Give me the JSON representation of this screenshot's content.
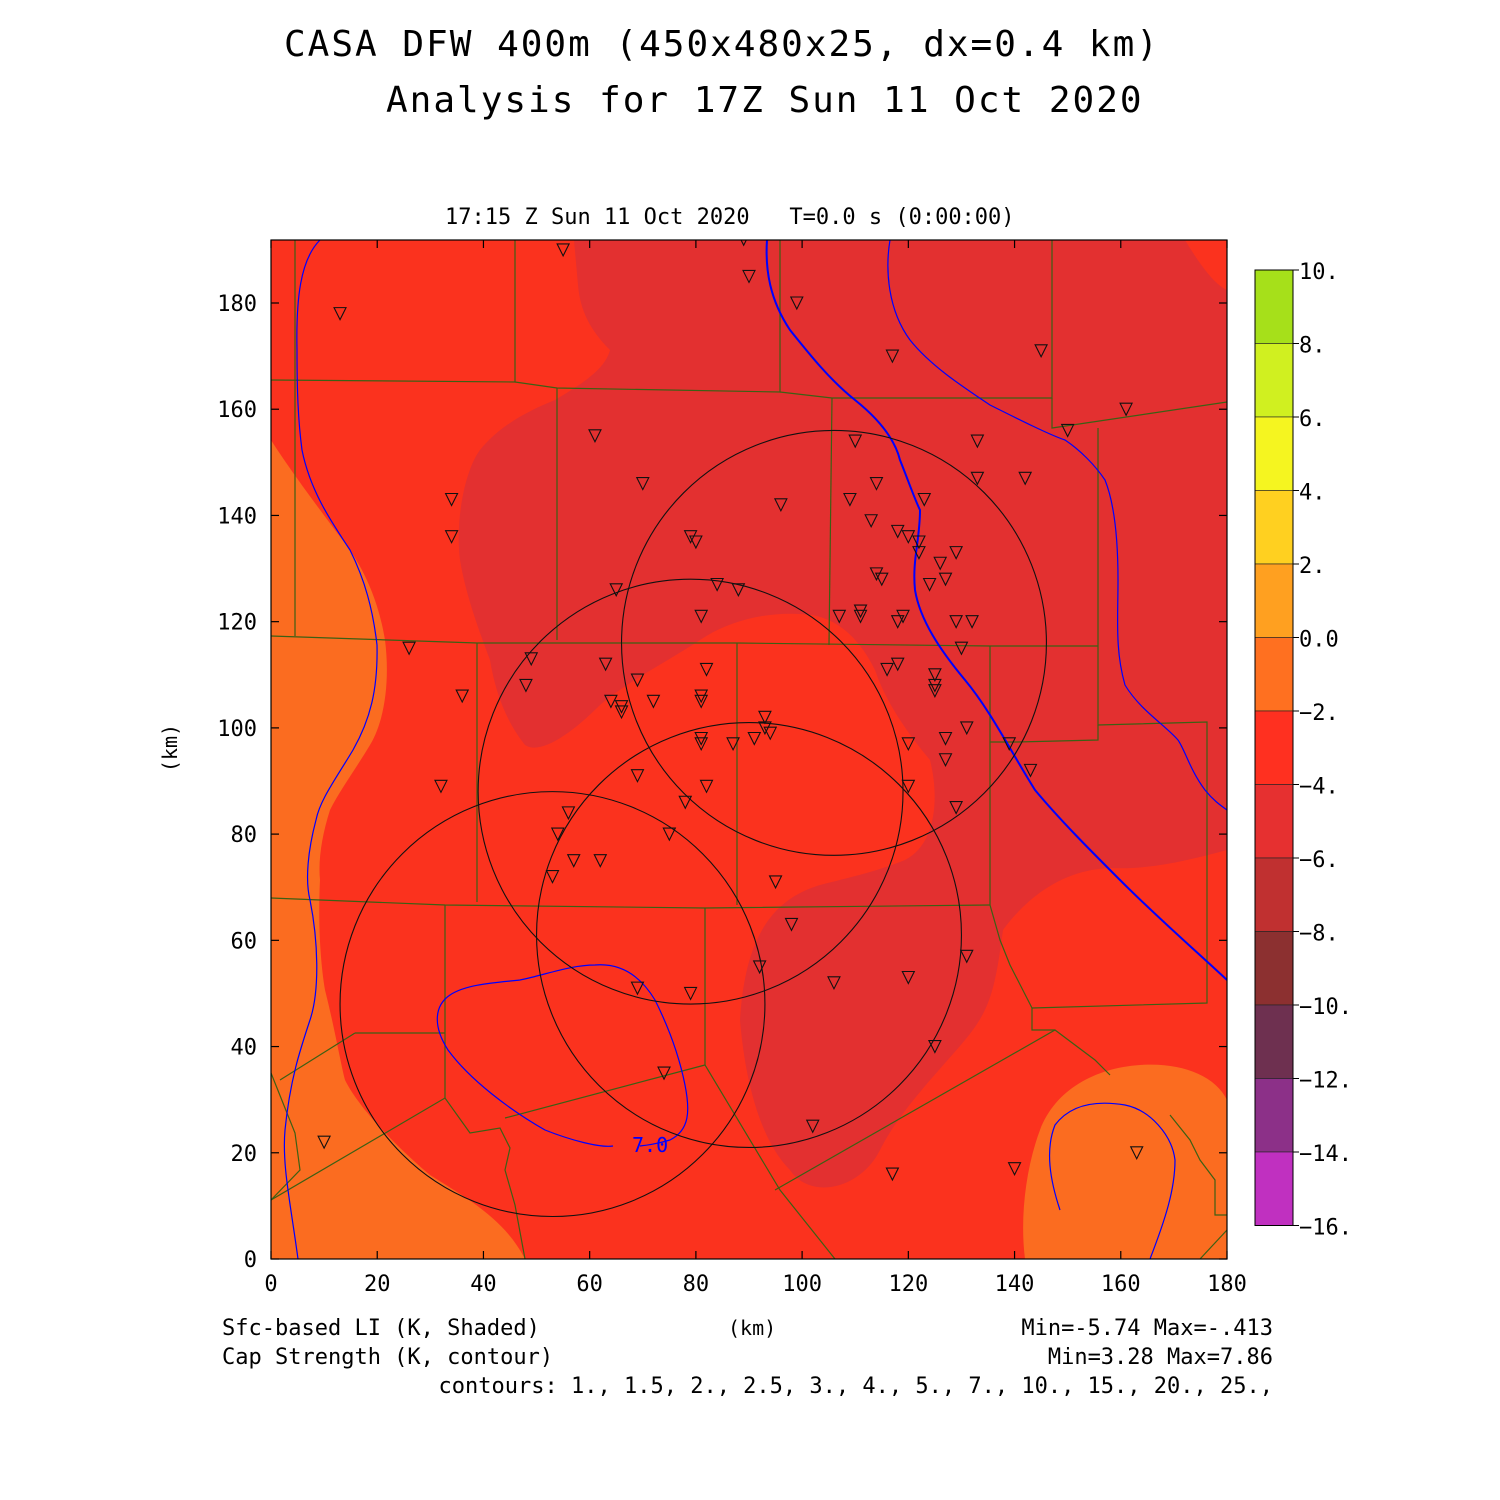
{
  "title": {
    "line1": "CASA DFW 400m (450x480x25, dx=0.4 km)",
    "line2": "Analysis for 17Z Sun 11 Oct 2020"
  },
  "plot_subtitle": "17:15 Z Sun 11 Oct 2020   T=0.0 s (0:00:00)",
  "axes": {
    "x_label": "(km)",
    "y_label": "(km)",
    "x_ticks": [
      "0",
      "20",
      "40",
      "60",
      "80",
      "100",
      "120",
      "140",
      "160",
      "180"
    ],
    "y_ticks": [
      "0",
      "20",
      "40",
      "60",
      "80",
      "100",
      "120",
      "140",
      "160",
      "180"
    ],
    "x_range": [
      0,
      180
    ],
    "y_range": [
      0,
      192
    ]
  },
  "colorbar": {
    "labels": [
      "10.",
      "8.",
      "6.",
      "4.",
      "2.",
      "0.0",
      "−2.",
      "−4.",
      "−6.",
      "−8.",
      "−10.",
      "−12.",
      "−14.",
      "−16."
    ],
    "colors": [
      "#a6e01a",
      "#d0f020",
      "#f5f520",
      "#ffd020",
      "#ffa020",
      "#ff7020",
      "#ff3020",
      "#e63030",
      "#c03030",
      "#8c3030",
      "#6e3050",
      "#8c3088",
      "#c030c0",
      "#e040e0"
    ]
  },
  "colors": {
    "li_minus2_0": "#fb6c20",
    "li_minus4_minus2": "#fb321e",
    "li_minus6_minus4": "#e33030",
    "cap_contour": "#0000ff",
    "county_lines": "#3c6014"
  },
  "contour_labels": [
    "7.0"
  ],
  "footer": {
    "field1": "Sfc-based LI (K, Shaded)",
    "field2": "Cap Strength (K, contour)",
    "stats1": "Min=-5.74 Max=-.413",
    "stats2": "Min=3.28 Max=7.86",
    "contours": "contours: 1., 1.5, 2., 2.5, 3., 4., 5., 7., 10., 15., 20., 25.,"
  },
  "radar_ranges": [
    {
      "x": 106,
      "y": 116,
      "r": 40
    },
    {
      "x": 79,
      "y": 88,
      "r": 40
    },
    {
      "x": 90,
      "y": 61,
      "r": 40
    },
    {
      "x": 53,
      "y": 48,
      "r": 40
    }
  ],
  "stations": [
    [
      13,
      178
    ],
    [
      55,
      190
    ],
    [
      89,
      192
    ],
    [
      90,
      185
    ],
    [
      99,
      180
    ],
    [
      117,
      170
    ],
    [
      145,
      171
    ],
    [
      161,
      160
    ],
    [
      150,
      156
    ],
    [
      61,
      155
    ],
    [
      110,
      154
    ],
    [
      133,
      154
    ],
    [
      70,
      146
    ],
    [
      114,
      146
    ],
    [
      133,
      147
    ],
    [
      142,
      147
    ],
    [
      34,
      143
    ],
    [
      96,
      142
    ],
    [
      109,
      143
    ],
    [
      123,
      143
    ],
    [
      34,
      136
    ],
    [
      79,
      136
    ],
    [
      80,
      135
    ],
    [
      113,
      139
    ],
    [
      118,
      137
    ],
    [
      120,
      136
    ],
    [
      122,
      135
    ],
    [
      122,
      133
    ],
    [
      126,
      131
    ],
    [
      129,
      133
    ],
    [
      65,
      126
    ],
    [
      84,
      127
    ],
    [
      88,
      126
    ],
    [
      114,
      129
    ],
    [
      115,
      128
    ],
    [
      124,
      127
    ],
    [
      127,
      128
    ],
    [
      81,
      121
    ],
    [
      107,
      121
    ],
    [
      111,
      121
    ],
    [
      111,
      122
    ],
    [
      118,
      120
    ],
    [
      119,
      121
    ],
    [
      129,
      120
    ],
    [
      132,
      120
    ],
    [
      26,
      115
    ],
    [
      49,
      113
    ],
    [
      63,
      112
    ],
    [
      82,
      111
    ],
    [
      116,
      111
    ],
    [
      118,
      112
    ],
    [
      125,
      110
    ],
    [
      130,
      115
    ],
    [
      36,
      106
    ],
    [
      48,
      108
    ],
    [
      64,
      105
    ],
    [
      66,
      104
    ],
    [
      66,
      103
    ],
    [
      69,
      109
    ],
    [
      72,
      105
    ],
    [
      81,
      106
    ],
    [
      81,
      105
    ],
    [
      125,
      108
    ],
    [
      125,
      107
    ],
    [
      93,
      102
    ],
    [
      93,
      100
    ],
    [
      94,
      99
    ],
    [
      81,
      98
    ],
    [
      81,
      97
    ],
    [
      87,
      97
    ],
    [
      91,
      98
    ],
    [
      120,
      97
    ],
    [
      127,
      98
    ],
    [
      131,
      100
    ],
    [
      139,
      97
    ],
    [
      32,
      89
    ],
    [
      69,
      91
    ],
    [
      82,
      89
    ],
    [
      120,
      89
    ],
    [
      127,
      94
    ],
    [
      143,
      92
    ],
    [
      56,
      84
    ],
    [
      54,
      80
    ],
    [
      75,
      80
    ],
    [
      78,
      86
    ],
    [
      129,
      85
    ],
    [
      57,
      75
    ],
    [
      62,
      75
    ],
    [
      53,
      72
    ],
    [
      95,
      71
    ],
    [
      98,
      63
    ],
    [
      131,
      57
    ],
    [
      92,
      55
    ],
    [
      69,
      51
    ],
    [
      79,
      50
    ],
    [
      106,
      52
    ],
    [
      120,
      53
    ],
    [
      125,
      40
    ],
    [
      74,
      35
    ],
    [
      10,
      22
    ],
    [
      102,
      25
    ],
    [
      117,
      16
    ],
    [
      140,
      17
    ],
    [
      163,
      20
    ]
  ]
}
